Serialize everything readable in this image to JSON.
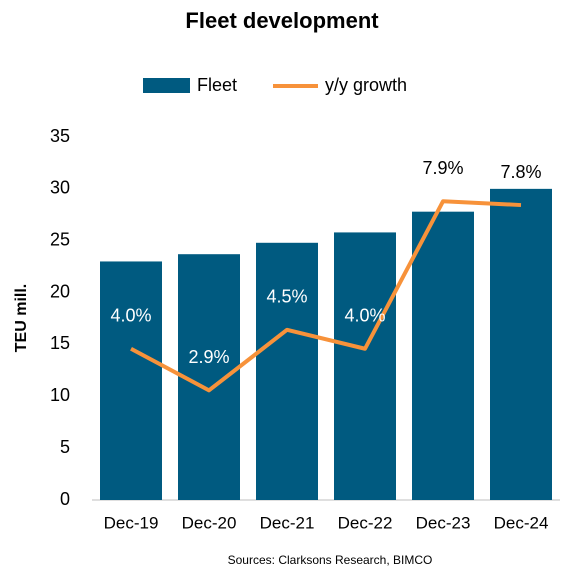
{
  "chart_data": {
    "type": "bar_line",
    "title": "Fleet development",
    "y_axis_label": "TEU mill.",
    "source": "Sources: Clarksons Research, BIMCO",
    "categories": [
      "Dec-19",
      "Dec-20",
      "Dec-21",
      "Dec-22",
      "Dec-23",
      "Dec-24"
    ],
    "series": [
      {
        "name": "Fleet",
        "type": "bar",
        "color": "#005a80",
        "values": [
          23.0,
          23.7,
          24.8,
          25.8,
          27.8,
          30.0
        ]
      },
      {
        "name": "y/y growth",
        "type": "line",
        "axis": "y2",
        "color": "#f7923a",
        "values": [
          4.0,
          2.9,
          4.5,
          4.0,
          7.9,
          7.8
        ],
        "value_labels": [
          "4.0%",
          "2.9%",
          "4.5%",
          "4.0%",
          "7.9%",
          "7.8%"
        ]
      }
    ],
    "ylim": [
      0,
      35
    ],
    "yticks": [
      0,
      5,
      10,
      15,
      20,
      25,
      30,
      35
    ],
    "y2lim": [
      0,
      9.6
    ],
    "legend": "top"
  }
}
